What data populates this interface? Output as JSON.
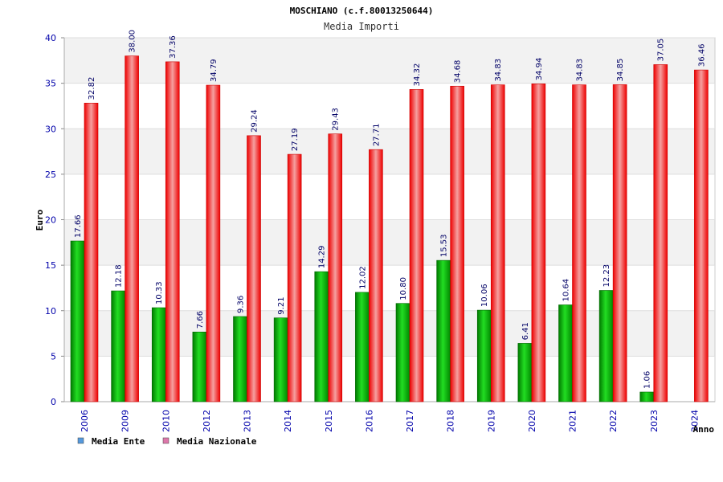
{
  "chart_data": {
    "type": "bar",
    "title": "MOSCHIANO (c.f.80013250644)",
    "subtitle": "Media Importi",
    "xlabel": "Anno",
    "ylabel": "Euro",
    "ylim": [
      0,
      40
    ],
    "yticks": [
      0,
      5,
      10,
      15,
      20,
      25,
      30,
      35,
      40
    ],
    "grid": true,
    "legend_position": "bottom-left",
    "categories": [
      "2006",
      "2009",
      "2010",
      "2012",
      "2013",
      "2014",
      "2015",
      "2016",
      "2017",
      "2018",
      "2019",
      "2020",
      "2021",
      "2022",
      "2023",
      "2024"
    ],
    "series": [
      {
        "name": "Media Ente",
        "color": "#00aa00",
        "legend_color": "#5599dd",
        "values": [
          17.66,
          12.18,
          10.33,
          7.66,
          9.36,
          9.21,
          14.29,
          12.02,
          10.8,
          15.53,
          10.06,
          6.41,
          10.64,
          12.23,
          1.06,
          null
        ],
        "labels": [
          "17.66",
          "12.18",
          "10.33",
          "7.66",
          "9.36",
          "9.21",
          "14.29",
          "12.02",
          "10.80",
          "15.53",
          "10.06",
          "6.41",
          "10.64",
          "12.23",
          "1.06",
          ""
        ]
      },
      {
        "name": "Media Nazionale",
        "color": "#ee1111",
        "legend_color": "#dd77aa",
        "values": [
          32.82,
          38.0,
          37.36,
          34.79,
          29.24,
          27.19,
          29.43,
          27.71,
          34.32,
          34.68,
          34.83,
          34.94,
          34.83,
          34.85,
          37.05,
          36.46
        ],
        "labels": [
          "32.82",
          "38.00",
          "37.36",
          "34.79",
          "29.24",
          "27.19",
          "29.43",
          "27.71",
          "34.32",
          "34.68",
          "34.83",
          "34.94",
          "34.83",
          "34.85",
          "37.05",
          "36.46"
        ]
      }
    ]
  }
}
